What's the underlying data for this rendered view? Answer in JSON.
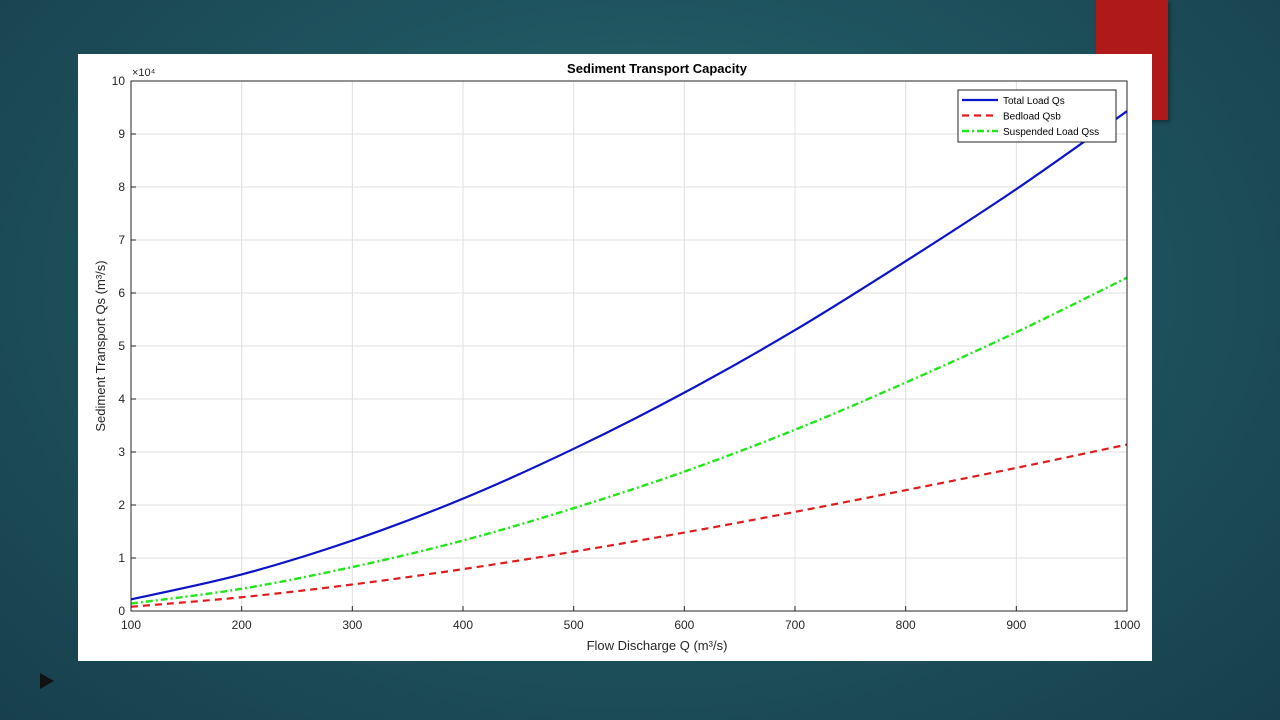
{
  "colors": {
    "accent": "#b0191a",
    "total": "#0b14c8",
    "bedload": "#e01b1b",
    "suspended": "#22e51a"
  },
  "chart_data": {
    "type": "line",
    "title": "Sediment Transport Capacity",
    "xlabel": "Flow Discharge Q (m³/s)",
    "ylabel": "Sediment Transport Qs (m³/s)",
    "y_exponent_label": "×10⁴",
    "xlim": [
      100,
      1000
    ],
    "ylim": [
      0,
      100000
    ],
    "x_ticks": [
      100,
      200,
      300,
      400,
      500,
      600,
      700,
      800,
      900,
      1000
    ],
    "y_ticks": [
      0,
      10000,
      20000,
      30000,
      40000,
      50000,
      60000,
      70000,
      80000,
      90000,
      100000
    ],
    "y_tick_labels": [
      "0",
      "1",
      "2",
      "3",
      "4",
      "5",
      "6",
      "7",
      "8",
      "9",
      "10"
    ],
    "grid": true,
    "legend_position": "top-right",
    "x": [
      100,
      200,
      300,
      400,
      500,
      600,
      700,
      800,
      900,
      1000
    ],
    "series": [
      {
        "name": "Total Load Qs",
        "style": "solid",
        "values": [
          2200,
          6900,
          13300,
          21200,
          30600,
          41200,
          53000,
          66000,
          79600,
          94300
        ]
      },
      {
        "name": "Bedload Qsb",
        "style": "dashed",
        "values": [
          800,
          2600,
          5000,
          7900,
          11200,
          14800,
          18700,
          22800,
          27000,
          31400
        ]
      },
      {
        "name": "Suspended Load Qss",
        "style": "dashdot",
        "values": [
          1400,
          4200,
          8300,
          13300,
          19400,
          26300,
          34200,
          43100,
          52600,
          62900
        ]
      }
    ]
  }
}
